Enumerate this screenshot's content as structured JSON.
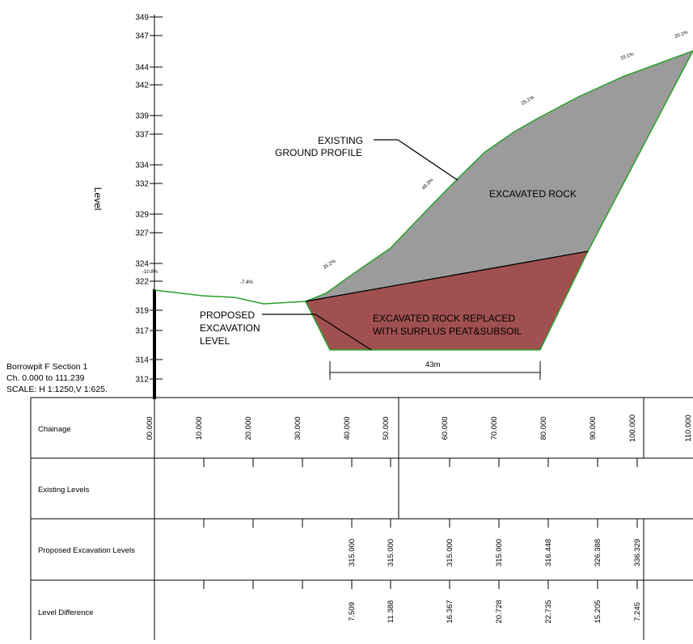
{
  "drawing": {
    "section_title": "Borrowpit F Section 1",
    "chainage_range": "Ch. 0.000 to 111.239",
    "scale": "SCALE: H 1:1250,V 1:625."
  },
  "axis": {
    "label": "Level",
    "ticks": [
      "349",
      "347",
      "344",
      "342",
      "339",
      "337",
      "334",
      "332",
      "329",
      "327",
      "324",
      "322",
      "319",
      "317",
      "314",
      "312"
    ]
  },
  "labels": {
    "excavated_rock": "EXCAVATED ROCK",
    "replaced_line1": "EXCAVATED ROCK REPLACED",
    "replaced_line2": "WITH SURPLUS PEAT&SUBSOIL",
    "existing_line1": "EXISTING",
    "existing_line2": "GROUND  PROFILE",
    "proposed_line1": "PROPOSED",
    "proposed_line2": "EXCAVATION",
    "proposed_line3": "LEVEL",
    "width_dim": "43m"
  },
  "grades": [
    "-10.8%",
    "-7.4%",
    "35.2%",
    "49.3%",
    "25.1%",
    "19.1%",
    "20.1%"
  ],
  "colors": {
    "ground_line": "#2aa02a",
    "excavated_rock": "#9b9b9b",
    "replaced_fill": "#a05050"
  },
  "table": {
    "rows": {
      "chainage": "Chainage",
      "existing": "Existing Levels",
      "proposed": "Proposed Excavation Levels",
      "difference": "Level Difference"
    },
    "chainages": [
      "00.000",
      "10.000",
      "20.000",
      "30.000",
      "40.000",
      "50.000",
      "60.000",
      "70.000",
      "80.000",
      "90.000",
      "100.000",
      "110.000"
    ],
    "proposed_values": [
      "315.000",
      "315.000",
      "315.000",
      "315.000",
      "316.448",
      "326.388",
      "336.329"
    ],
    "difference_values": [
      "7.509",
      "11.388",
      "16.367",
      "20.728",
      "22.735",
      "15.205",
      "7.245"
    ]
  }
}
